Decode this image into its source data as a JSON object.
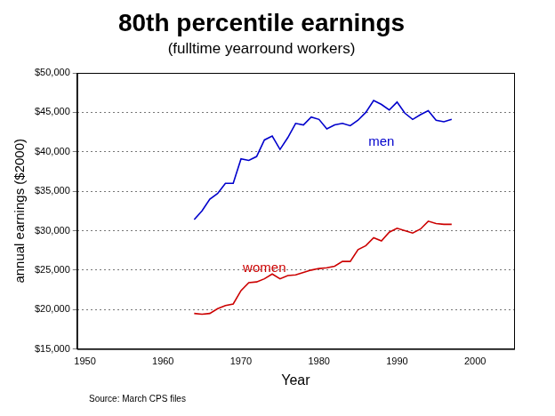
{
  "chart_data": {
    "type": "line",
    "title": "80th percentile earnings",
    "subtitle": "(fulltime yearround workers)",
    "x_label": "Year",
    "y_label": "annual earnings ($2000)",
    "source": "Source: March CPS files",
    "x": [
      1964,
      1965,
      1966,
      1967,
      1968,
      1969,
      1970,
      1971,
      1972,
      1973,
      1974,
      1975,
      1976,
      1977,
      1978,
      1979,
      1980,
      1981,
      1982,
      1983,
      1984,
      1985,
      1986,
      1987,
      1988,
      1989,
      1990,
      1991,
      1992,
      1993,
      1994,
      1995,
      1996,
      1997
    ],
    "series": [
      {
        "name": "men",
        "color": "#0000cc",
        "values": [
          31400,
          32500,
          34000,
          34700,
          36000,
          36000,
          39100,
          38900,
          39400,
          41500,
          42000,
          40300,
          41800,
          43600,
          43400,
          44400,
          44100,
          42900,
          43400,
          43600,
          43300,
          44000,
          45000,
          46500,
          46000,
          45300,
          46300,
          44900,
          44100,
          44700,
          45200,
          44000,
          43800,
          44100
        ]
      },
      {
        "name": "women",
        "color": "#cc0000",
        "values": [
          19500,
          19400,
          19500,
          20100,
          20500,
          20700,
          22400,
          23400,
          23500,
          23900,
          24500,
          23900,
          24300,
          24400,
          24700,
          25000,
          25200,
          25300,
          25500,
          26100,
          26100,
          27600,
          28100,
          29100,
          28700,
          29800,
          30300,
          30000,
          29700,
          30200,
          31200,
          30900,
          30800,
          30800
        ]
      }
    ],
    "xlim": [
      1949,
      2005
    ],
    "xticks": [
      1950,
      1960,
      1970,
      1980,
      1990,
      2000
    ],
    "ylim": [
      15000,
      50000
    ],
    "yticks": [
      {
        "value": 15000,
        "label": "$15,000"
      },
      {
        "value": 20000,
        "label": "$20,000"
      },
      {
        "value": 25000,
        "label": "$25,000"
      },
      {
        "value": 30000,
        "label": "$30,000"
      },
      {
        "value": 35000,
        "label": "$35,000"
      },
      {
        "value": 40000,
        "label": "$40,000"
      },
      {
        "value": 45000,
        "label": "$45,000"
      },
      {
        "value": 50000,
        "label": "$50,000"
      }
    ],
    "grid": true
  }
}
